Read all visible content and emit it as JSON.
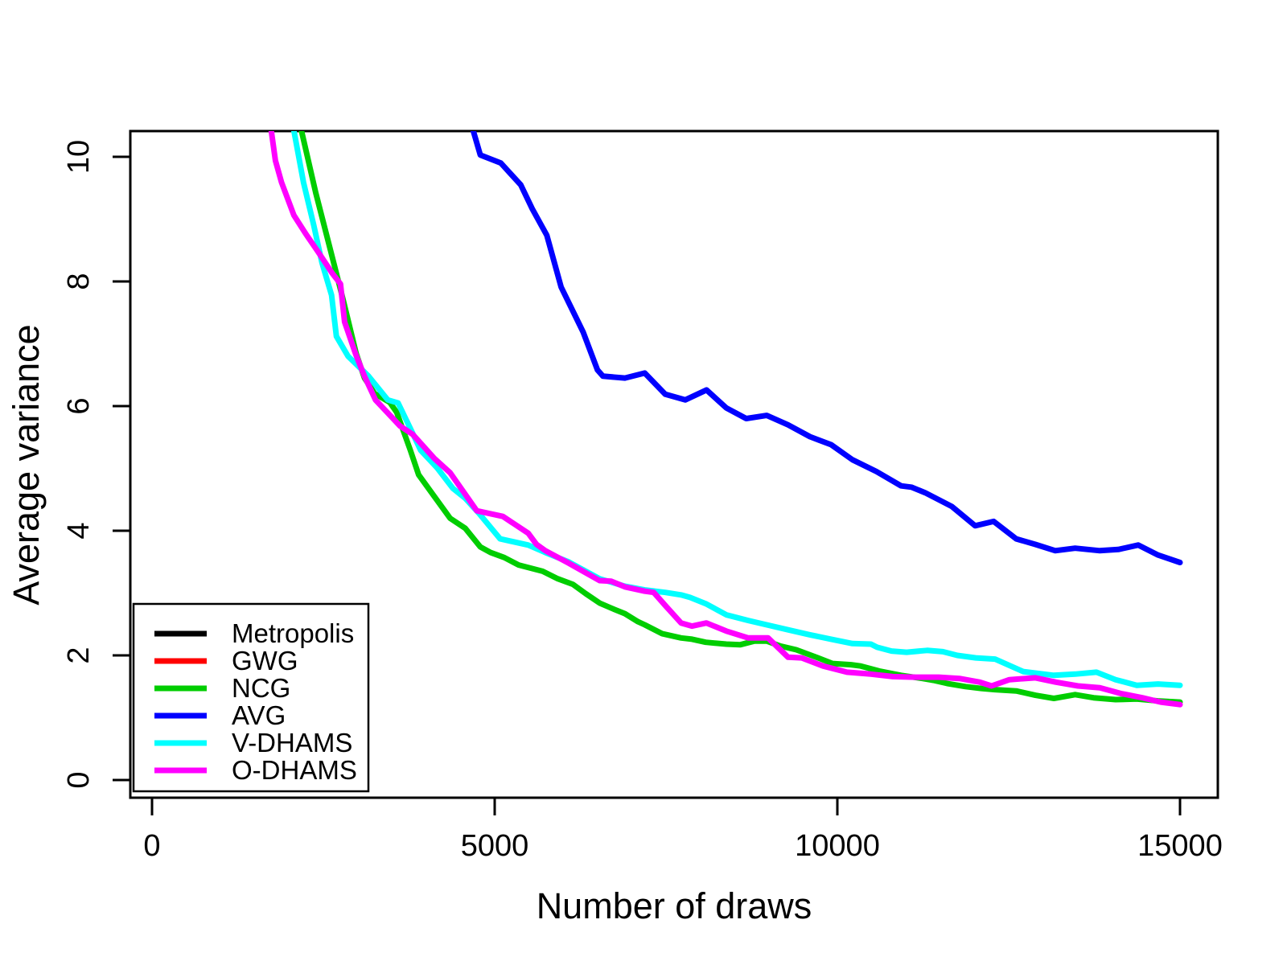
{
  "figure": {
    "background": "#ffffff",
    "axis_color": "#000000"
  },
  "chart_data": {
    "type": "line",
    "title": "",
    "xlabel": "Number of draws",
    "ylabel": "Average variance",
    "xlim": [
      0,
      15600
    ],
    "ylim": [
      0,
      10.4
    ],
    "x_ticks": [
      0,
      5000,
      10000,
      15000
    ],
    "y_ticks": [
      0,
      2,
      4,
      6,
      8,
      10
    ],
    "grid": false,
    "legend_position": "bottom-left",
    "series": [
      {
        "name": "Metropolis",
        "color": "#000000",
        "note": "curve above visible y-range; only shown in legend",
        "points": []
      },
      {
        "name": "GWG",
        "color": "#FF0000",
        "note": "curve above visible y-range; only shown in legend",
        "points": []
      },
      {
        "name": "NCG",
        "color": "#00CD00",
        "points": [
          [
            2080,
            10.9
          ],
          [
            2390,
            9.42
          ],
          [
            2590,
            8.56
          ],
          [
            2790,
            7.7
          ],
          [
            2980,
            6.84
          ],
          [
            3100,
            6.45
          ],
          [
            3250,
            6.2
          ],
          [
            3470,
            6.06
          ],
          [
            3570,
            5.9
          ],
          [
            3770,
            5.29
          ],
          [
            3890,
            4.9
          ],
          [
            4120,
            4.55
          ],
          [
            4350,
            4.2
          ],
          [
            4570,
            4.04
          ],
          [
            4790,
            3.74
          ],
          [
            4940,
            3.65
          ],
          [
            5140,
            3.57
          ],
          [
            5350,
            3.45
          ],
          [
            5700,
            3.35
          ],
          [
            5920,
            3.23
          ],
          [
            6140,
            3.14
          ],
          [
            6330,
            2.99
          ],
          [
            6530,
            2.84
          ],
          [
            6740,
            2.74
          ],
          [
            6900,
            2.67
          ],
          [
            7090,
            2.54
          ],
          [
            7190,
            2.49
          ],
          [
            7440,
            2.35
          ],
          [
            7720,
            2.28
          ],
          [
            7880,
            2.26
          ],
          [
            8080,
            2.21
          ],
          [
            8380,
            2.18
          ],
          [
            8580,
            2.17
          ],
          [
            8790,
            2.23
          ],
          [
            8970,
            2.23
          ],
          [
            9170,
            2.15
          ],
          [
            9400,
            2.09
          ],
          [
            9720,
            1.96
          ],
          [
            9930,
            1.87
          ],
          [
            10200,
            1.85
          ],
          [
            10340,
            1.83
          ],
          [
            10610,
            1.75
          ],
          [
            10930,
            1.68
          ],
          [
            11240,
            1.63
          ],
          [
            11400,
            1.6
          ],
          [
            11600,
            1.55
          ],
          [
            11870,
            1.5
          ],
          [
            12100,
            1.47
          ],
          [
            12300,
            1.45
          ],
          [
            12610,
            1.43
          ],
          [
            12890,
            1.36
          ],
          [
            13160,
            1.31
          ],
          [
            13470,
            1.37
          ],
          [
            13740,
            1.32
          ],
          [
            14060,
            1.29
          ],
          [
            14370,
            1.3
          ],
          [
            14680,
            1.27
          ],
          [
            15000,
            1.25
          ]
        ]
      },
      {
        "name": "AVG",
        "color": "#0000FF",
        "points": [
          [
            4560,
            10.9
          ],
          [
            4790,
            10.03
          ],
          [
            5090,
            9.9
          ],
          [
            5380,
            9.55
          ],
          [
            5550,
            9.16
          ],
          [
            5760,
            8.74
          ],
          [
            5970,
            7.91
          ],
          [
            6290,
            7.19
          ],
          [
            6500,
            6.58
          ],
          [
            6580,
            6.48
          ],
          [
            6900,
            6.45
          ],
          [
            7190,
            6.53
          ],
          [
            7490,
            6.19
          ],
          [
            7780,
            6.1
          ],
          [
            8090,
            6.26
          ],
          [
            8380,
            5.97
          ],
          [
            8670,
            5.8
          ],
          [
            8970,
            5.85
          ],
          [
            9280,
            5.7
          ],
          [
            9600,
            5.51
          ],
          [
            9910,
            5.38
          ],
          [
            10220,
            5.14
          ],
          [
            10570,
            4.95
          ],
          [
            10930,
            4.72
          ],
          [
            11080,
            4.7
          ],
          [
            11280,
            4.61
          ],
          [
            11670,
            4.39
          ],
          [
            12010,
            4.08
          ],
          [
            12280,
            4.15
          ],
          [
            12610,
            3.87
          ],
          [
            12890,
            3.78
          ],
          [
            13180,
            3.68
          ],
          [
            13470,
            3.72
          ],
          [
            13830,
            3.68
          ],
          [
            14100,
            3.7
          ],
          [
            14390,
            3.77
          ],
          [
            14680,
            3.61
          ],
          [
            15000,
            3.49
          ]
        ]
      },
      {
        "name": "V-DHAMS",
        "color": "#00FFFF",
        "points": [
          [
            1990,
            10.9
          ],
          [
            2210,
            9.59
          ],
          [
            2360,
            8.9
          ],
          [
            2480,
            8.3
          ],
          [
            2620,
            7.78
          ],
          [
            2690,
            7.12
          ],
          [
            2860,
            6.8
          ],
          [
            3160,
            6.48
          ],
          [
            3440,
            6.1
          ],
          [
            3590,
            6.05
          ],
          [
            3770,
            5.64
          ],
          [
            3920,
            5.29
          ],
          [
            4160,
            5.01
          ],
          [
            4390,
            4.68
          ],
          [
            4570,
            4.52
          ],
          [
            4770,
            4.28
          ],
          [
            5080,
            3.87
          ],
          [
            5490,
            3.77
          ],
          [
            5740,
            3.65
          ],
          [
            6080,
            3.5
          ],
          [
            6530,
            3.23
          ],
          [
            6900,
            3.11
          ],
          [
            7190,
            3.05
          ],
          [
            7490,
            3.01
          ],
          [
            7720,
            2.97
          ],
          [
            7850,
            2.93
          ],
          [
            8080,
            2.83
          ],
          [
            8380,
            2.65
          ],
          [
            8700,
            2.56
          ],
          [
            8970,
            2.49
          ],
          [
            9280,
            2.41
          ],
          [
            9600,
            2.33
          ],
          [
            9910,
            2.26
          ],
          [
            10220,
            2.19
          ],
          [
            10490,
            2.18
          ],
          [
            10580,
            2.13
          ],
          [
            10790,
            2.07
          ],
          [
            11010,
            2.05
          ],
          [
            11310,
            2.08
          ],
          [
            11540,
            2.06
          ],
          [
            11750,
            2.0
          ],
          [
            12020,
            1.96
          ],
          [
            12300,
            1.94
          ],
          [
            12710,
            1.74
          ],
          [
            13160,
            1.68
          ],
          [
            13470,
            1.7
          ],
          [
            13780,
            1.73
          ],
          [
            14060,
            1.61
          ],
          [
            14370,
            1.52
          ],
          [
            14680,
            1.54
          ],
          [
            15000,
            1.52
          ]
        ]
      },
      {
        "name": "O-DHAMS",
        "color": "#FF00FF",
        "points": [
          [
            1680,
            10.9
          ],
          [
            1800,
            9.94
          ],
          [
            1890,
            9.59
          ],
          [
            2070,
            9.06
          ],
          [
            2240,
            8.77
          ],
          [
            2420,
            8.48
          ],
          [
            2630,
            8.13
          ],
          [
            2750,
            7.96
          ],
          [
            2810,
            7.35
          ],
          [
            2970,
            6.84
          ],
          [
            3100,
            6.48
          ],
          [
            3260,
            6.1
          ],
          [
            3620,
            5.68
          ],
          [
            3800,
            5.55
          ],
          [
            4120,
            5.16
          ],
          [
            4350,
            4.93
          ],
          [
            4740,
            4.32
          ],
          [
            5120,
            4.23
          ],
          [
            5490,
            3.96
          ],
          [
            5610,
            3.78
          ],
          [
            5740,
            3.68
          ],
          [
            6080,
            3.48
          ],
          [
            6530,
            3.2
          ],
          [
            6700,
            3.19
          ],
          [
            6900,
            3.1
          ],
          [
            7190,
            3.03
          ],
          [
            7320,
            3.01
          ],
          [
            7490,
            2.8
          ],
          [
            7720,
            2.52
          ],
          [
            7880,
            2.47
          ],
          [
            8090,
            2.52
          ],
          [
            8380,
            2.39
          ],
          [
            8700,
            2.28
          ],
          [
            8990,
            2.28
          ],
          [
            9280,
            1.97
          ],
          [
            9480,
            1.96
          ],
          [
            9790,
            1.83
          ],
          [
            10140,
            1.73
          ],
          [
            10490,
            1.7
          ],
          [
            10810,
            1.66
          ],
          [
            11130,
            1.65
          ],
          [
            11480,
            1.65
          ],
          [
            11780,
            1.63
          ],
          [
            12080,
            1.57
          ],
          [
            12250,
            1.51
          ],
          [
            12510,
            1.61
          ],
          [
            12890,
            1.64
          ],
          [
            13190,
            1.57
          ],
          [
            13510,
            1.51
          ],
          [
            13830,
            1.48
          ],
          [
            14130,
            1.39
          ],
          [
            14450,
            1.32
          ],
          [
            14720,
            1.25
          ],
          [
            15000,
            1.21
          ]
        ]
      }
    ]
  }
}
